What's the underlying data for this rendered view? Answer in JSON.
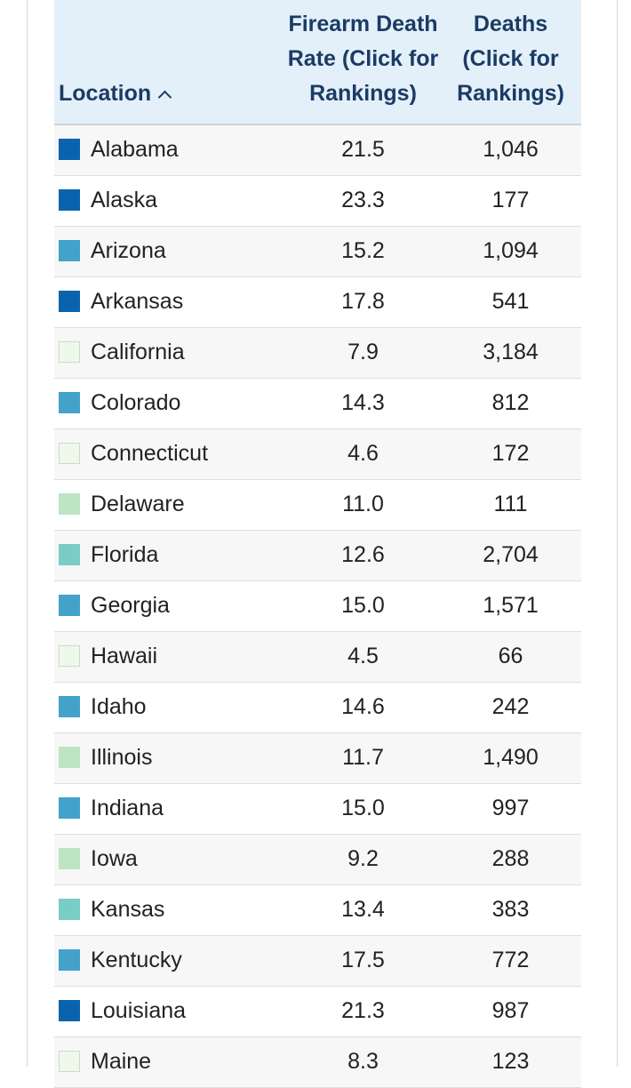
{
  "table": {
    "headers": {
      "location": "Location",
      "rate_line1": "Firearm Death",
      "rate_line2": "Rate (Click for",
      "rate_line3": "Rankings)",
      "deaths_line1": "Deaths",
      "deaths_line2": "(Click for",
      "deaths_line3": "Rankings)",
      "sort_icon": "chevron-up-icon"
    },
    "rows": [
      {
        "location": "Alabama",
        "rate": "21.5",
        "deaths": "1,046",
        "color": "#0a64ad"
      },
      {
        "location": "Alaska",
        "rate": "23.3",
        "deaths": "177",
        "color": "#0a64ad"
      },
      {
        "location": "Arizona",
        "rate": "15.2",
        "deaths": "1,094",
        "color": "#43a2ca"
      },
      {
        "location": "Arkansas",
        "rate": "17.8",
        "deaths": "541",
        "color": "#0a64ad"
      },
      {
        "location": "California",
        "rate": "7.9",
        "deaths": "3,184",
        "color": "#eef9e9"
      },
      {
        "location": "Colorado",
        "rate": "14.3",
        "deaths": "812",
        "color": "#43a2ca"
      },
      {
        "location": "Connecticut",
        "rate": "4.6",
        "deaths": "172",
        "color": "#eef9e9"
      },
      {
        "location": "Delaware",
        "rate": "11.0",
        "deaths": "111",
        "color": "#bde5c4"
      },
      {
        "location": "Florida",
        "rate": "12.6",
        "deaths": "2,704",
        "color": "#7acdc4"
      },
      {
        "location": "Georgia",
        "rate": "15.0",
        "deaths": "1,571",
        "color": "#43a2ca"
      },
      {
        "location": "Hawaii",
        "rate": "4.5",
        "deaths": "66",
        "color": "#eef9e9"
      },
      {
        "location": "Idaho",
        "rate": "14.6",
        "deaths": "242",
        "color": "#43a2ca"
      },
      {
        "location": "Illinois",
        "rate": "11.7",
        "deaths": "1,490",
        "color": "#bde5c4"
      },
      {
        "location": "Indiana",
        "rate": "15.0",
        "deaths": "997",
        "color": "#43a2ca"
      },
      {
        "location": "Iowa",
        "rate": "9.2",
        "deaths": "288",
        "color": "#bde5c4"
      },
      {
        "location": "Kansas",
        "rate": "13.4",
        "deaths": "383",
        "color": "#7acdc4"
      },
      {
        "location": "Kentucky",
        "rate": "17.5",
        "deaths": "772",
        "color": "#43a2ca"
      },
      {
        "location": "Louisiana",
        "rate": "21.3",
        "deaths": "987",
        "color": "#0a64ad"
      },
      {
        "location": "Maine",
        "rate": "8.3",
        "deaths": "123",
        "color": "#eef9e9"
      }
    ]
  }
}
